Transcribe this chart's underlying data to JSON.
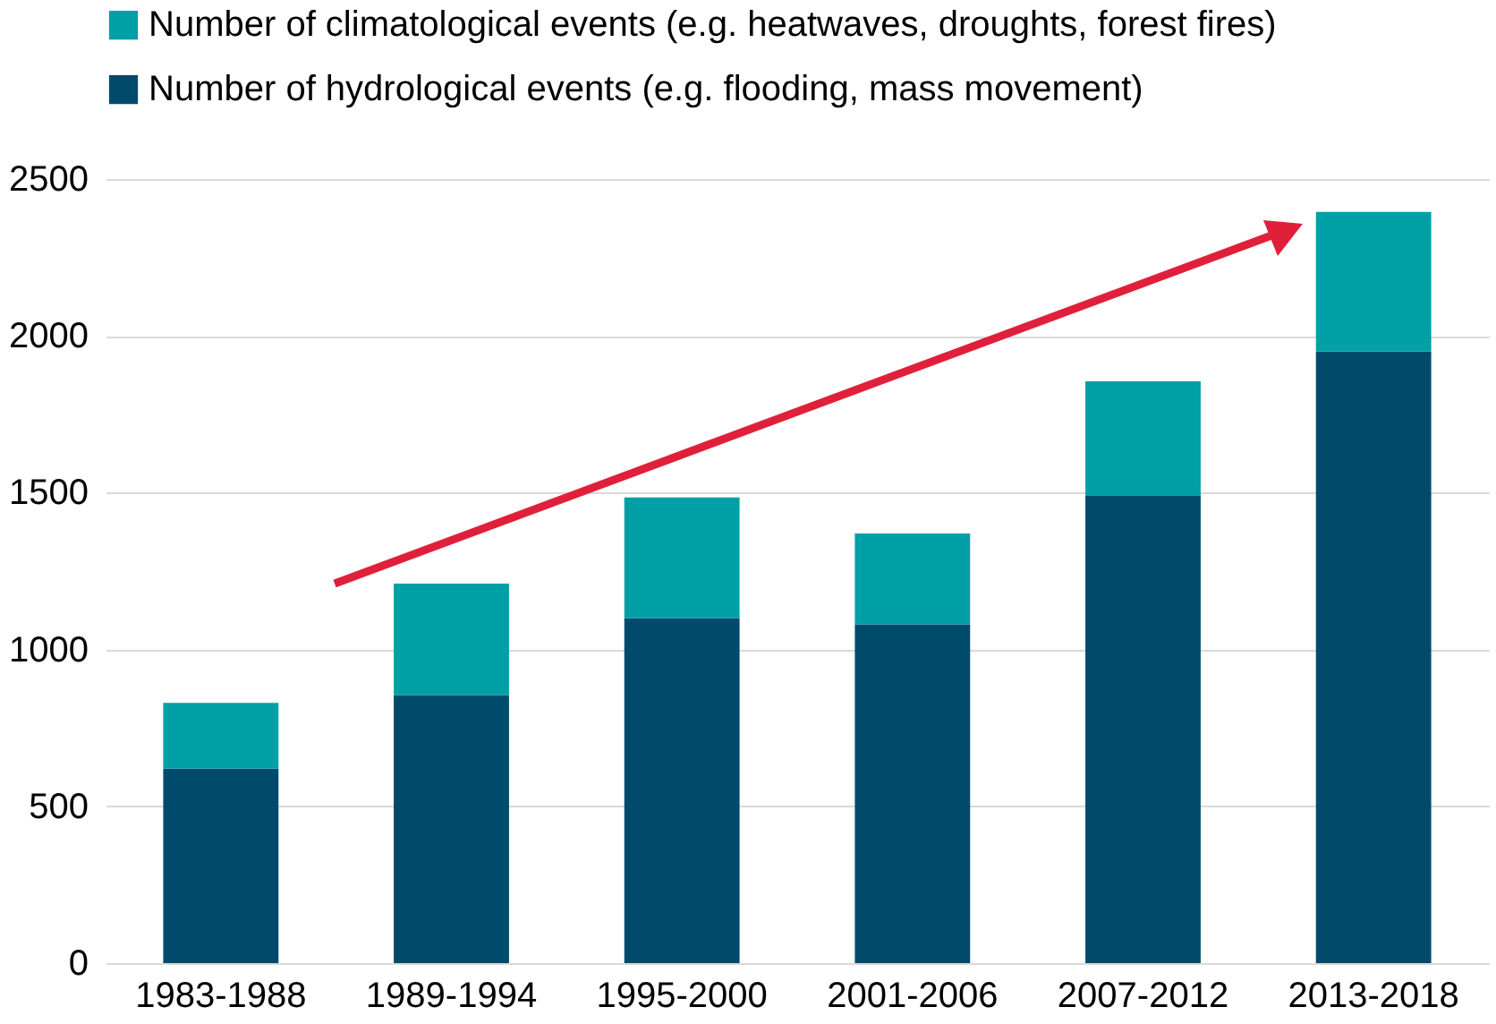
{
  "chart_data": {
    "type": "bar",
    "stacked": true,
    "categories": [
      "1983-1988",
      "1989-1994",
      "1995-2000",
      "2001-2006",
      "2007-2012",
      "2013-2018"
    ],
    "series": [
      {
        "name": "Number of hydrological events (e.g. flooding, mass movement)",
        "color": "#004a6b",
        "values": [
          620,
          855,
          1100,
          1080,
          1490,
          1950
        ]
      },
      {
        "name": "Number of climatological events (e.g. heatwaves, droughts, forest fires)",
        "color": "#00a0a6",
        "values": [
          210,
          355,
          385,
          290,
          365,
          445
        ]
      }
    ],
    "ylim": [
      0,
      2500
    ],
    "yticks": [
      0,
      500,
      1000,
      1500,
      2000,
      2500
    ],
    "grid": "y",
    "legend": "top left"
  }
}
